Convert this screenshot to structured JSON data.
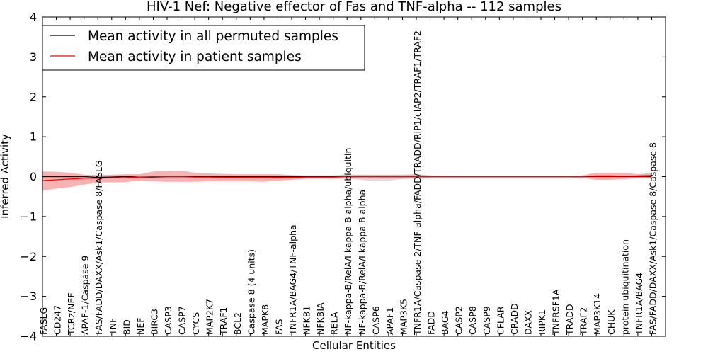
{
  "chart_data": {
    "type": "line",
    "title": "HIV-1 Nef: Negative effector of Fas and TNF-alpha -- 112 samples",
    "xlabel": "Cellular Entities",
    "ylabel": "Inferred Activity",
    "ylim": [
      -4,
      4
    ],
    "yticks": [
      -4,
      -3,
      -2,
      -1,
      0,
      1,
      2,
      3,
      4
    ],
    "ytick_labels": [
      "−4",
      "−3",
      "−2",
      "−1",
      "0",
      "1",
      "2",
      "3",
      "4"
    ],
    "grid": false,
    "legend_position": "top-left",
    "categories": [
      "FASLG",
      "CD247",
      "TCRz/NEF",
      "APAF-1/Caspase 9",
      "FAS/FADD/DAXX/Ask1/Caspase 8/FASLG",
      "TNF",
      "BID",
      "NEF",
      "BIRC3",
      "CASP3",
      "CASP7",
      "CYCS",
      "MAP2K7",
      "TRAF1",
      "BCL2",
      "Caspase 8 (4 units)",
      "MAPK8",
      "FAS",
      "TNFR1A/BAG4/TNF-alpha",
      "NFKB1",
      "NFKBIA",
      "RELA",
      "NF-kappa-B/RelA/I kappa B alpha/ubiquitin",
      "NF-kappa-B/RelA/I kappa B alpha",
      "CASP6",
      "APAF1",
      "MAP3K5",
      "TNFR1A/Caspase 2/TNF-alpha/FADD/TRADD/RIP1/cIAP2/TRAF1/TRAF2",
      "FADD",
      "BAG4",
      "CASP2",
      "CASP8",
      "CASP9",
      "CFLAR",
      "CRADD",
      "DAXX",
      "RIPK1",
      "TNFRSF1A",
      "TRADD",
      "TRAF2",
      "MAP3K14",
      "CHUK",
      "protein ubiquitination",
      "TNFR1A/BAG4",
      "FAS/FADD/DAXX/Ask1/Caspase 8/Caspase 8"
    ],
    "series": [
      {
        "name": "Mean activity in all permuted samples",
        "color": "#000000",
        "values": [
          0.0,
          0.0,
          0.0,
          0.0,
          -0.02,
          -0.01,
          0.0,
          -0.01,
          -0.01,
          0.0,
          0.0,
          0.0,
          0.0,
          0.0,
          0.0,
          0.0,
          0.0,
          0.0,
          0.0,
          0.0,
          0.0,
          0.0,
          0.0,
          0.0,
          0.0,
          0.0,
          0.0,
          0.0,
          0.0,
          0.0,
          0.0,
          0.0,
          0.0,
          0.0,
          0.0,
          0.0,
          0.0,
          0.0,
          0.0,
          0.0,
          0.0,
          0.0,
          0.0,
          0.0,
          0.0
        ],
        "band_upper": [
          0.02,
          0.02,
          0.02,
          0.02,
          0.02,
          0.02,
          0.02,
          0.02,
          0.02,
          0.02,
          0.02,
          0.02,
          0.02,
          0.02,
          0.02,
          0.02,
          0.02,
          0.02,
          0.02,
          0.02,
          0.02,
          0.02,
          0.02,
          0.02,
          0.02,
          0.02,
          0.02,
          0.02,
          0.02,
          0.02,
          0.02,
          0.02,
          0.02,
          0.02,
          0.02,
          0.02,
          0.02,
          0.02,
          0.02,
          0.02,
          0.02,
          0.02,
          0.02,
          0.02,
          0.02
        ],
        "band_lower": [
          -0.05,
          -0.05,
          -0.05,
          -0.05,
          -0.06,
          -0.05,
          -0.05,
          -0.05,
          -0.05,
          -0.05,
          -0.05,
          -0.05,
          -0.05,
          -0.05,
          -0.05,
          -0.05,
          -0.05,
          -0.05,
          -0.05,
          -0.05,
          -0.05,
          -0.05,
          -0.05,
          -0.08,
          -0.12,
          -0.1,
          -0.06,
          -0.05,
          -0.05,
          -0.05,
          -0.05,
          -0.05,
          -0.05,
          -0.05,
          -0.05,
          -0.05,
          -0.05,
          -0.05,
          -0.05,
          -0.05,
          -0.05,
          -0.05,
          -0.05,
          -0.05,
          -0.05
        ]
      },
      {
        "name": "Mean activity in patient samples",
        "color": "#ff0000",
        "values": [
          -0.1,
          -0.08,
          -0.06,
          -0.04,
          -0.04,
          -0.03,
          -0.03,
          -0.01,
          0.0,
          0.0,
          0.0,
          -0.01,
          -0.01,
          -0.02,
          -0.02,
          -0.02,
          -0.02,
          -0.02,
          -0.02,
          -0.01,
          -0.01,
          -0.01,
          0.0,
          0.0,
          0.0,
          0.0,
          0.0,
          0.0,
          0.0,
          0.0,
          0.0,
          0.0,
          0.0,
          0.0,
          0.0,
          0.0,
          0.0,
          0.0,
          0.0,
          0.0,
          0.02,
          0.02,
          0.01,
          0.02,
          0.03
        ],
        "band_upper": [
          0.13,
          0.12,
          0.1,
          0.05,
          0.04,
          0.05,
          0.06,
          0.06,
          0.13,
          0.15,
          0.15,
          0.1,
          0.08,
          0.07,
          0.06,
          0.06,
          0.06,
          0.06,
          0.04,
          0.03,
          0.03,
          0.03,
          0.05,
          0.05,
          0.05,
          0.05,
          0.05,
          0.06,
          0.03,
          0.02,
          0.02,
          0.02,
          0.02,
          0.02,
          0.02,
          0.02,
          0.02,
          0.02,
          0.02,
          0.03,
          0.1,
          0.1,
          0.1,
          0.06,
          0.09
        ],
        "band_lower": [
          -0.35,
          -0.3,
          -0.26,
          -0.2,
          -0.15,
          -0.14,
          -0.14,
          -0.1,
          -0.12,
          -0.13,
          -0.13,
          -0.13,
          -0.12,
          -0.12,
          -0.12,
          -0.12,
          -0.13,
          -0.1,
          -0.08,
          -0.05,
          -0.05,
          -0.05,
          -0.05,
          -0.05,
          -0.05,
          -0.05,
          -0.05,
          -0.05,
          -0.02,
          -0.02,
          -0.02,
          -0.02,
          -0.02,
          -0.02,
          -0.02,
          -0.02,
          -0.02,
          -0.02,
          -0.02,
          -0.03,
          -0.08,
          -0.08,
          -0.06,
          -0.04,
          -0.05
        ]
      }
    ]
  }
}
